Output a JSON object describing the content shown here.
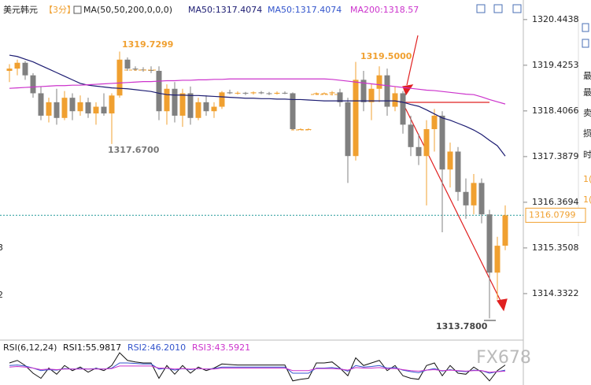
{
  "header": {
    "symbol": "美元韩元",
    "period": "【3分】",
    "ma_spec": "MA(50,50,200,0,0,0)",
    "ma_first": "MA50:1317.4074"
  },
  "side_texts": [
    "最",
    "最",
    "卖",
    "损",
    "时",
    "1(",
    "1("
  ],
  "left_axis_fragments": [
    "3",
    "2"
  ],
  "watermark": "FX678",
  "chart_data": [
    {
      "type": "candlestick",
      "rising_color": "#f0a030",
      "falling_color": "#808080",
      "ylim": [
        1313.33,
        1320.88
      ],
      "yticks": [
        1320.4438,
        1319.4253,
        1318.4066,
        1317.3879,
        1316.3694,
        1315.3508,
        1314.3322
      ],
      "open": [
        1319.3,
        1319.35,
        1319.48,
        1319.2,
        1318.8,
        1318.3,
        1318.6,
        1318.25,
        1318.7,
        1318.4,
        1318.6,
        1318.35,
        1318.5,
        1318.35,
        1318.75,
        1319.55,
        1319.35,
        1319.33,
        1319.32,
        1319.3,
        1318.4,
        1318.9,
        1318.3,
        1318.8,
        1318.25,
        1318.6,
        1318.4,
        1318.5,
        1318.82,
        1318.8,
        1318.81,
        1318.8,
        1318.82,
        1318.8,
        1318.79,
        1318.81,
        1318.8,
        1318.0,
        1318.0,
        1318.8,
        1318.8,
        1318.8,
        1318.82,
        1318.6,
        1317.4,
        1319.1,
        1318.6,
        1318.9,
        1319.2,
        1318.5,
        1318.8,
        1318.1,
        1317.6,
        1317.4,
        1318.0,
        1318.3,
        1317.1,
        1317.5,
        1316.6,
        1316.3,
        1316.8,
        1316.1,
        1314.8,
        1315.4
      ],
      "high": [
        1319.45,
        1319.55,
        1319.52,
        1319.25,
        1318.95,
        1318.7,
        1318.9,
        1318.85,
        1318.8,
        1318.75,
        1318.7,
        1318.6,
        1318.8,
        1318.8,
        1319.73,
        1319.6,
        1319.4,
        1319.38,
        1319.4,
        1319.4,
        1319.0,
        1319.05,
        1318.9,
        1318.95,
        1318.7,
        1318.75,
        1318.6,
        1318.85,
        1318.88,
        1318.84,
        1318.83,
        1318.84,
        1318.85,
        1318.83,
        1318.84,
        1318.84,
        1318.82,
        1318.02,
        1318.02,
        1318.82,
        1318.82,
        1318.85,
        1318.9,
        1318.7,
        1319.5,
        1319.3,
        1319.0,
        1319.4,
        1319.35,
        1318.95,
        1318.85,
        1318.3,
        1317.9,
        1318.2,
        1318.45,
        1318.4,
        1317.7,
        1317.6,
        1316.9,
        1317.0,
        1316.9,
        1316.2,
        1315.6,
        1316.3
      ],
      "low": [
        1319.05,
        1319.2,
        1319.1,
        1318.7,
        1318.2,
        1318.15,
        1318.1,
        1318.2,
        1318.2,
        1318.3,
        1318.25,
        1318.1,
        1318.3,
        1317.67,
        1318.7,
        1319.3,
        1319.3,
        1319.28,
        1319.25,
        1318.2,
        1318.1,
        1318.15,
        1318.05,
        1318.1,
        1318.2,
        1318.3,
        1318.25,
        1318.45,
        1318.78,
        1318.77,
        1318.76,
        1318.77,
        1318.78,
        1318.76,
        1318.77,
        1318.78,
        1317.98,
        1317.98,
        1317.98,
        1318.78,
        1318.78,
        1318.75,
        1318.5,
        1316.8,
        1317.3,
        1318.4,
        1318.2,
        1318.6,
        1318.3,
        1318.4,
        1317.9,
        1317.4,
        1317.2,
        1316.3,
        1317.5,
        1315.7,
        1316.7,
        1316.4,
        1316.0,
        1316.1,
        1315.9,
        1313.78,
        1314.2,
        1315.3
      ],
      "close": [
        1319.35,
        1319.48,
        1319.2,
        1318.8,
        1318.3,
        1318.6,
        1318.25,
        1318.7,
        1318.4,
        1318.6,
        1318.35,
        1318.5,
        1318.35,
        1318.75,
        1319.55,
        1319.35,
        1319.33,
        1319.32,
        1319.3,
        1318.4,
        1318.9,
        1318.3,
        1318.8,
        1318.25,
        1318.6,
        1318.4,
        1318.5,
        1318.82,
        1318.8,
        1318.81,
        1318.8,
        1318.82,
        1318.8,
        1318.79,
        1318.81,
        1318.8,
        1318.0,
        1318.0,
        1318.0,
        1318.8,
        1318.8,
        1318.82,
        1318.6,
        1317.4,
        1319.1,
        1318.6,
        1318.9,
        1319.2,
        1318.5,
        1318.8,
        1318.1,
        1317.6,
        1317.4,
        1318.0,
        1318.3,
        1317.1,
        1317.5,
        1316.6,
        1316.3,
        1316.8,
        1316.1,
        1314.8,
        1315.4,
        1316.08
      ],
      "series": [
        {
          "name": "MA50:1317.4074",
          "color": "#1c1c72",
          "values": [
            1319.65,
            1319.62,
            1319.56,
            1319.5,
            1319.42,
            1319.34,
            1319.26,
            1319.18,
            1319.1,
            1319.02,
            1318.98,
            1318.96,
            1318.94,
            1318.92,
            1318.91,
            1318.9,
            1318.88,
            1318.86,
            1318.84,
            1318.8,
            1318.77,
            1318.76,
            1318.76,
            1318.75,
            1318.75,
            1318.74,
            1318.73,
            1318.72,
            1318.71,
            1318.7,
            1318.69,
            1318.69,
            1318.68,
            1318.68,
            1318.67,
            1318.67,
            1318.66,
            1318.66,
            1318.65,
            1318.64,
            1318.63,
            1318.63,
            1318.63,
            1318.63,
            1318.63,
            1318.63,
            1318.63,
            1318.63,
            1318.63,
            1318.63,
            1318.6,
            1318.55,
            1318.51,
            1318.43,
            1318.34,
            1318.25,
            1318.2,
            1318.13,
            1318.06,
            1317.98,
            1317.88,
            1317.75,
            1317.63,
            1317.4
          ]
        },
        {
          "name": "MA200:1318.57",
          "color": "#cc33cc",
          "values": [
            1318.91,
            1318.92,
            1318.93,
            1318.94,
            1318.95,
            1318.96,
            1318.97,
            1318.97,
            1318.98,
            1318.98,
            1318.99,
            1319.0,
            1319.01,
            1319.02,
            1319.03,
            1319.04,
            1319.05,
            1319.06,
            1319.06,
            1319.07,
            1319.08,
            1319.08,
            1319.09,
            1319.09,
            1319.1,
            1319.1,
            1319.11,
            1319.11,
            1319.12,
            1319.12,
            1319.12,
            1319.12,
            1319.12,
            1319.12,
            1319.12,
            1319.12,
            1319.12,
            1319.12,
            1319.12,
            1319.12,
            1319.12,
            1319.11,
            1319.09,
            1319.07,
            1319.05,
            1319.03,
            1319.01,
            1318.99,
            1318.97,
            1318.95,
            1318.93,
            1318.91,
            1318.89,
            1318.87,
            1318.86,
            1318.84,
            1318.82,
            1318.8,
            1318.78,
            1318.77,
            1318.72,
            1318.66,
            1318.61,
            1318.56
          ]
        }
      ],
      "annotations": [
        "1319.7299",
        "1317.6700",
        "1319.5000",
        "1313.7800"
      ],
      "last_price": {
        "value": 1316.0799,
        "label": "1316.0799"
      }
    },
    {
      "type": "line",
      "title": "RSI(6,12,24)",
      "ylim": [
        20,
        80
      ],
      "series": [
        {
          "name": "RSI1:55.9817",
          "color": "#111111",
          "values": [
            60,
            65,
            55,
            40,
            30,
            50,
            38,
            55,
            45,
            52,
            42,
            50,
            45,
            55,
            80,
            65,
            62,
            60,
            60,
            30,
            55,
            38,
            55,
            40,
            52,
            45,
            50,
            58,
            57,
            56,
            56,
            56,
            56,
            56,
            56,
            56,
            25,
            28,
            30,
            60,
            60,
            62,
            50,
            35,
            70,
            55,
            60,
            65,
            45,
            55,
            35,
            30,
            28,
            55,
            60,
            35,
            55,
            40,
            38,
            52,
            42,
            25,
            45,
            56
          ]
        },
        {
          "name": "RSI2:46.2010",
          "color": "#3355cc",
          "values": [
            55,
            56,
            54,
            50,
            45,
            47,
            46,
            49,
            48,
            49,
            48,
            49,
            48,
            50,
            60,
            60,
            59,
            58,
            58,
            48,
            50,
            46,
            49,
            47,
            49,
            48,
            49,
            52,
            52,
            52,
            52,
            52,
            52,
            52,
            52,
            52,
            40,
            40,
            40,
            50,
            50,
            51,
            49,
            44,
            55,
            52,
            53,
            55,
            50,
            51,
            46,
            43,
            41,
            46,
            49,
            44,
            47,
            44,
            43,
            46,
            45,
            40,
            43,
            46
          ]
        },
        {
          "name": "RSI3:43.5921",
          "color": "#cc33cc",
          "values": [
            52,
            53,
            52,
            50,
            47,
            48,
            47,
            48,
            48,
            48,
            48,
            48,
            48,
            49,
            54,
            54,
            54,
            54,
            54,
            50,
            50,
            48,
            49,
            48,
            49,
            48,
            48,
            50,
            50,
            50,
            50,
            50,
            50,
            50,
            50,
            50,
            45,
            45,
            45,
            49,
            49,
            49,
            48,
            46,
            51,
            50,
            50,
            51,
            49,
            49,
            47,
            45,
            44,
            46,
            47,
            45,
            46,
            45,
            44,
            45,
            45,
            42,
            43,
            44
          ]
        }
      ]
    }
  ]
}
